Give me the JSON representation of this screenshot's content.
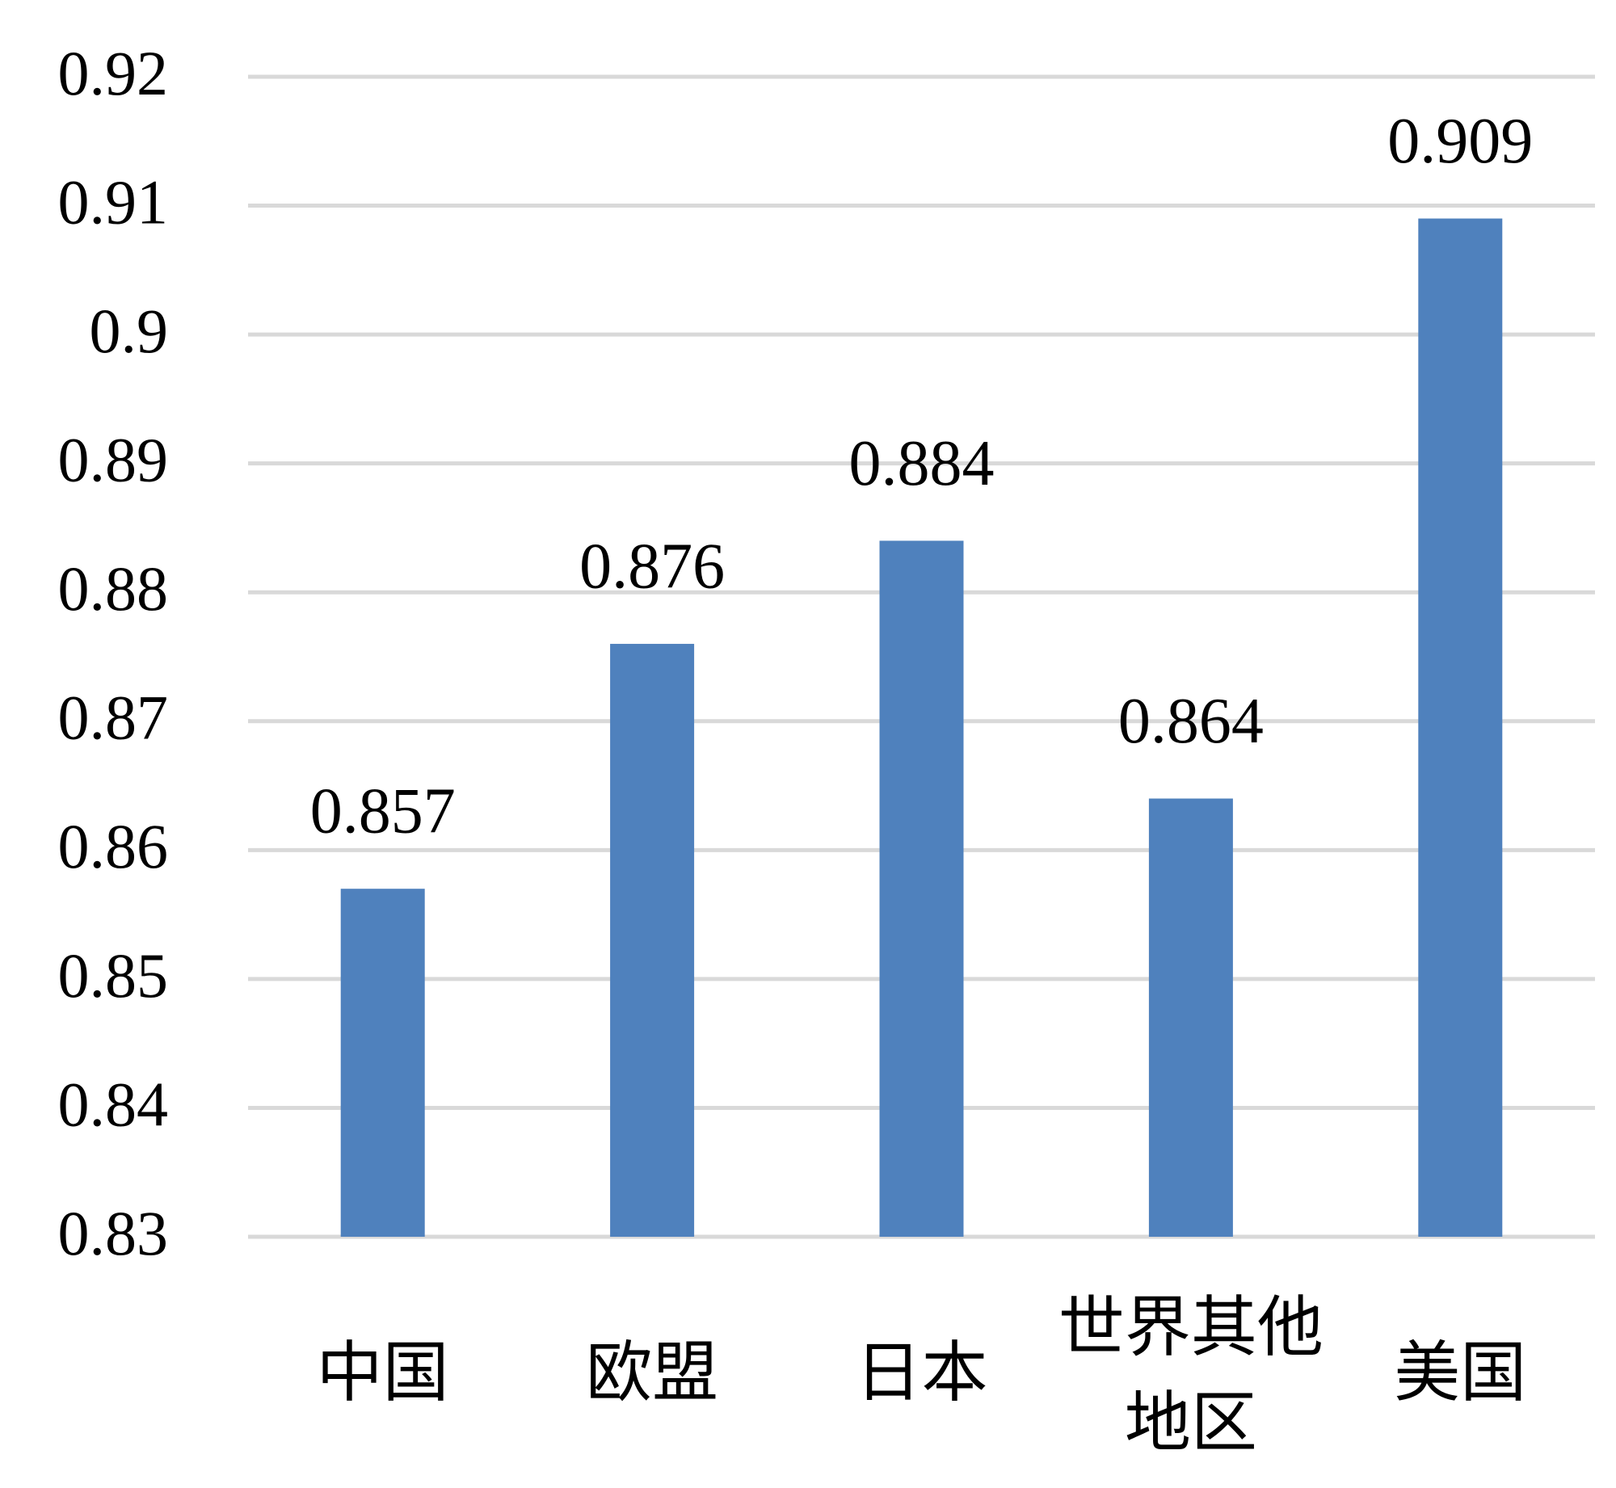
{
  "chart_data": {
    "type": "bar",
    "categories": [
      "中国",
      "欧盟",
      "日本",
      "世界其他地区",
      "美国"
    ],
    "values": [
      0.857,
      0.876,
      0.884,
      0.864,
      0.909
    ],
    "color": "#4f81bd",
    "ylim": [
      0.83,
      0.92
    ],
    "yticks": [
      0.83,
      0.84,
      0.85,
      0.86,
      0.87,
      0.88,
      0.89,
      0.9,
      0.91,
      0.92
    ],
    "grid": true
  }
}
